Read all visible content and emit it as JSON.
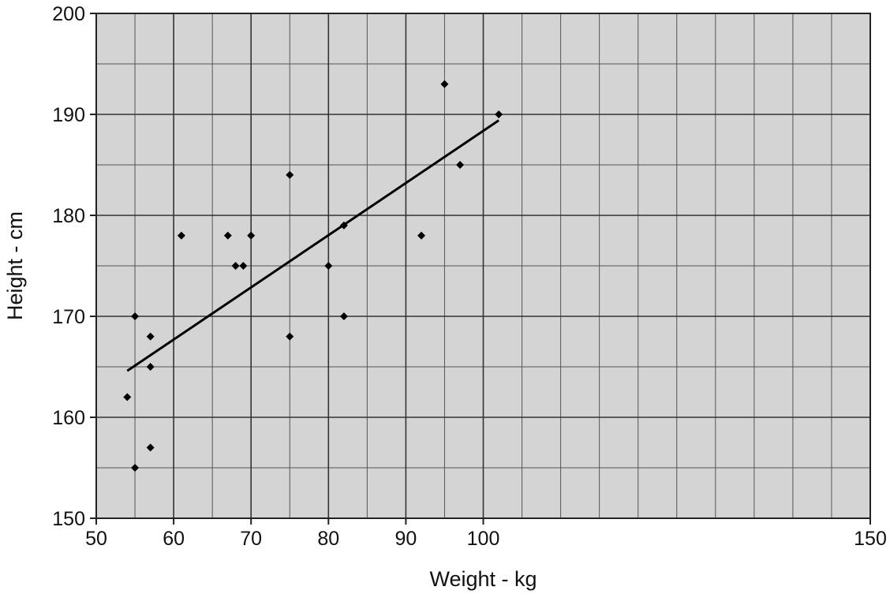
{
  "chart_data": {
    "type": "scatter",
    "title": "",
    "xlabel": "Weight - kg",
    "ylabel": "Height - cm",
    "xlim": [
      50,
      150
    ],
    "ylim": [
      150,
      200
    ],
    "x_major_ticks": [
      50,
      60,
      70,
      80,
      90,
      100,
      150
    ],
    "x_minor_grid": [
      55,
      65,
      75,
      85,
      95,
      105,
      110,
      115,
      120,
      125,
      130,
      135,
      140,
      145
    ],
    "y_ticks": [
      150,
      160,
      170,
      180,
      190,
      200
    ],
    "y_minor_grid": [
      155,
      165,
      175,
      185,
      195
    ],
    "grid": true,
    "legend": "none",
    "background_color": "#d4d4d4",
    "marker_color": "#000000",
    "marker_shape": "diamond",
    "series": [
      {
        "points": [
          {
            "x": 54,
            "y": 162
          },
          {
            "x": 55,
            "y": 170
          },
          {
            "x": 55,
            "y": 155
          },
          {
            "x": 57,
            "y": 168
          },
          {
            "x": 57,
            "y": 165
          },
          {
            "x": 57,
            "y": 157
          },
          {
            "x": 61,
            "y": 178
          },
          {
            "x": 67,
            "y": 178
          },
          {
            "x": 68,
            "y": 175
          },
          {
            "x": 69,
            "y": 175
          },
          {
            "x": 70,
            "y": 178
          },
          {
            "x": 75,
            "y": 184
          },
          {
            "x": 75,
            "y": 168
          },
          {
            "x": 80,
            "y": 175
          },
          {
            "x": 82,
            "y": 179
          },
          {
            "x": 82,
            "y": 170
          },
          {
            "x": 92,
            "y": 178
          },
          {
            "x": 95,
            "y": 193
          },
          {
            "x": 97,
            "y": 185
          },
          {
            "x": 102,
            "y": 190
          }
        ]
      }
    ],
    "trendline": {
      "type": "linear",
      "from": {
        "x": 54,
        "y": 164.6
      },
      "to": {
        "x": 102,
        "y": 189.4
      }
    }
  }
}
